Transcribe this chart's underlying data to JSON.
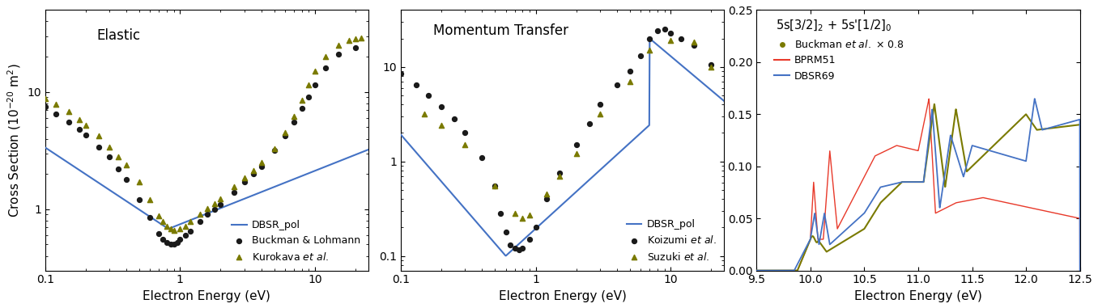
{
  "panel1_title": "Elastic",
  "panel2_title": "Momentum Transfer",
  "xlabel": "Electron Energy (eV)",
  "ylabel1": "Cross Section (10$^{-20}$ m$^2$)",
  "panel1_xlim": [
    0.1,
    25
  ],
  "panel1_ylim": [
    0.3,
    50
  ],
  "panel2_xlim": [
    0.1,
    25
  ],
  "panel2_ylim": [
    0.07,
    40
  ],
  "panel3_xlim": [
    9.5,
    12.5
  ],
  "panel3_ylim": [
    0.0,
    0.25
  ],
  "line_color_dbsr": "#4472C4",
  "line_color_bprm": "#E8392A",
  "dot_color_black": "#1a1a1a",
  "dot_color_olive": "#7a7a00",
  "background_color": "#ffffff",
  "tick_label_fontsize": 10,
  "axis_label_fontsize": 11,
  "legend_fontsize": 9,
  "panel_label_fontsize": 12
}
